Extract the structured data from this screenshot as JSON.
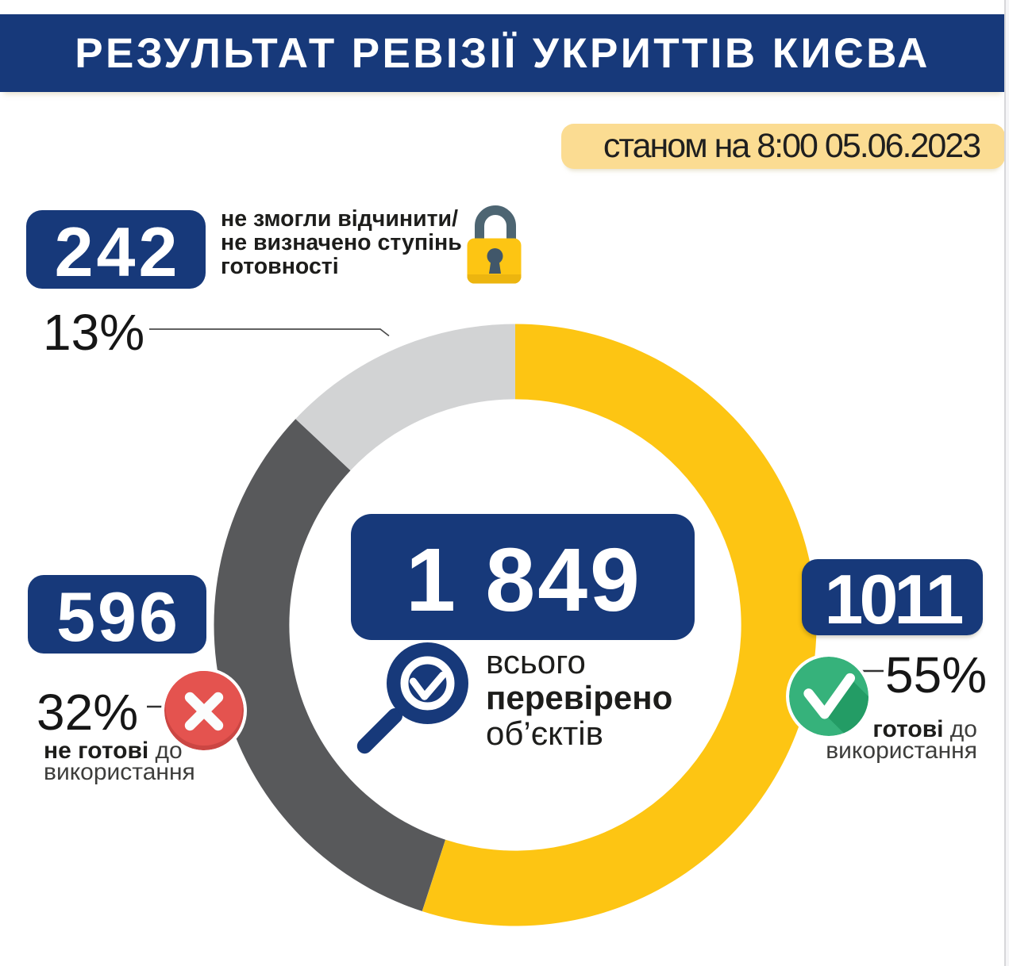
{
  "header": {
    "title": "РЕЗУЛЬТАТ РЕВІЗІЇ УКРИТТІВ КИЄВА",
    "timestamp_badge": "станом на 8:00 05.06.2023"
  },
  "center": {
    "total_value": "1 849",
    "caption_line1": "всього",
    "caption_line2": "перевірено",
    "caption_line3": "об’єктів"
  },
  "stats": {
    "locked": {
      "value": "242",
      "percent": "13%",
      "label_lines": [
        "не змогли відчинити/",
        "не визначено ступінь",
        "готовності"
      ],
      "icon": "lock-icon"
    },
    "not_ready": {
      "value": "596",
      "percent": "32%",
      "label_bold": "не готові",
      "label_rest": " до",
      "label_line2": "використання",
      "icon": "cross-icon"
    },
    "ready": {
      "value": "1011",
      "percent": "55%",
      "label_bold": "готові",
      "label_rest": " до",
      "label_line2": "використання",
      "icon": "check-icon"
    }
  },
  "colors": {
    "navy": "#17397a",
    "ring_yellow": "#fdc513",
    "badge_yellow": "#fbdc92",
    "dark_gray": "#58595b",
    "light_gray": "#d2d3d4",
    "red": "#e4534f",
    "red_shadow": "#cb4643",
    "green": "#36b27b",
    "green_shadow": "#239c65",
    "slate": "#4d6572",
    "slate_dark": "#41576a",
    "lock_yellow_shade": "#ecb50f"
  },
  "chart_data": {
    "type": "pie",
    "subtype": "donut",
    "title": "РЕЗУЛЬТАТ РЕВІЗІЇ УКРИТТІВ КИЄВА",
    "subtitle": "станом на 8:00 05.06.2023",
    "total": 1849,
    "center_label": "1 849 всього перевірено об’єктів",
    "slices": [
      {
        "label": "готові до використання",
        "value": 1011,
        "percent": 55,
        "color": "#fdc513"
      },
      {
        "label": "не готові до використання",
        "value": 596,
        "percent": 32,
        "color": "#58595b"
      },
      {
        "label": "не змогли відчинити/не визначено ступінь готовності",
        "value": 242,
        "percent": 13,
        "color": "#d2d3d4"
      }
    ],
    "start_angle_deg": 0,
    "direction": "clockwise",
    "inner_radius_ratio": 0.75,
    "legend_position": "none"
  }
}
